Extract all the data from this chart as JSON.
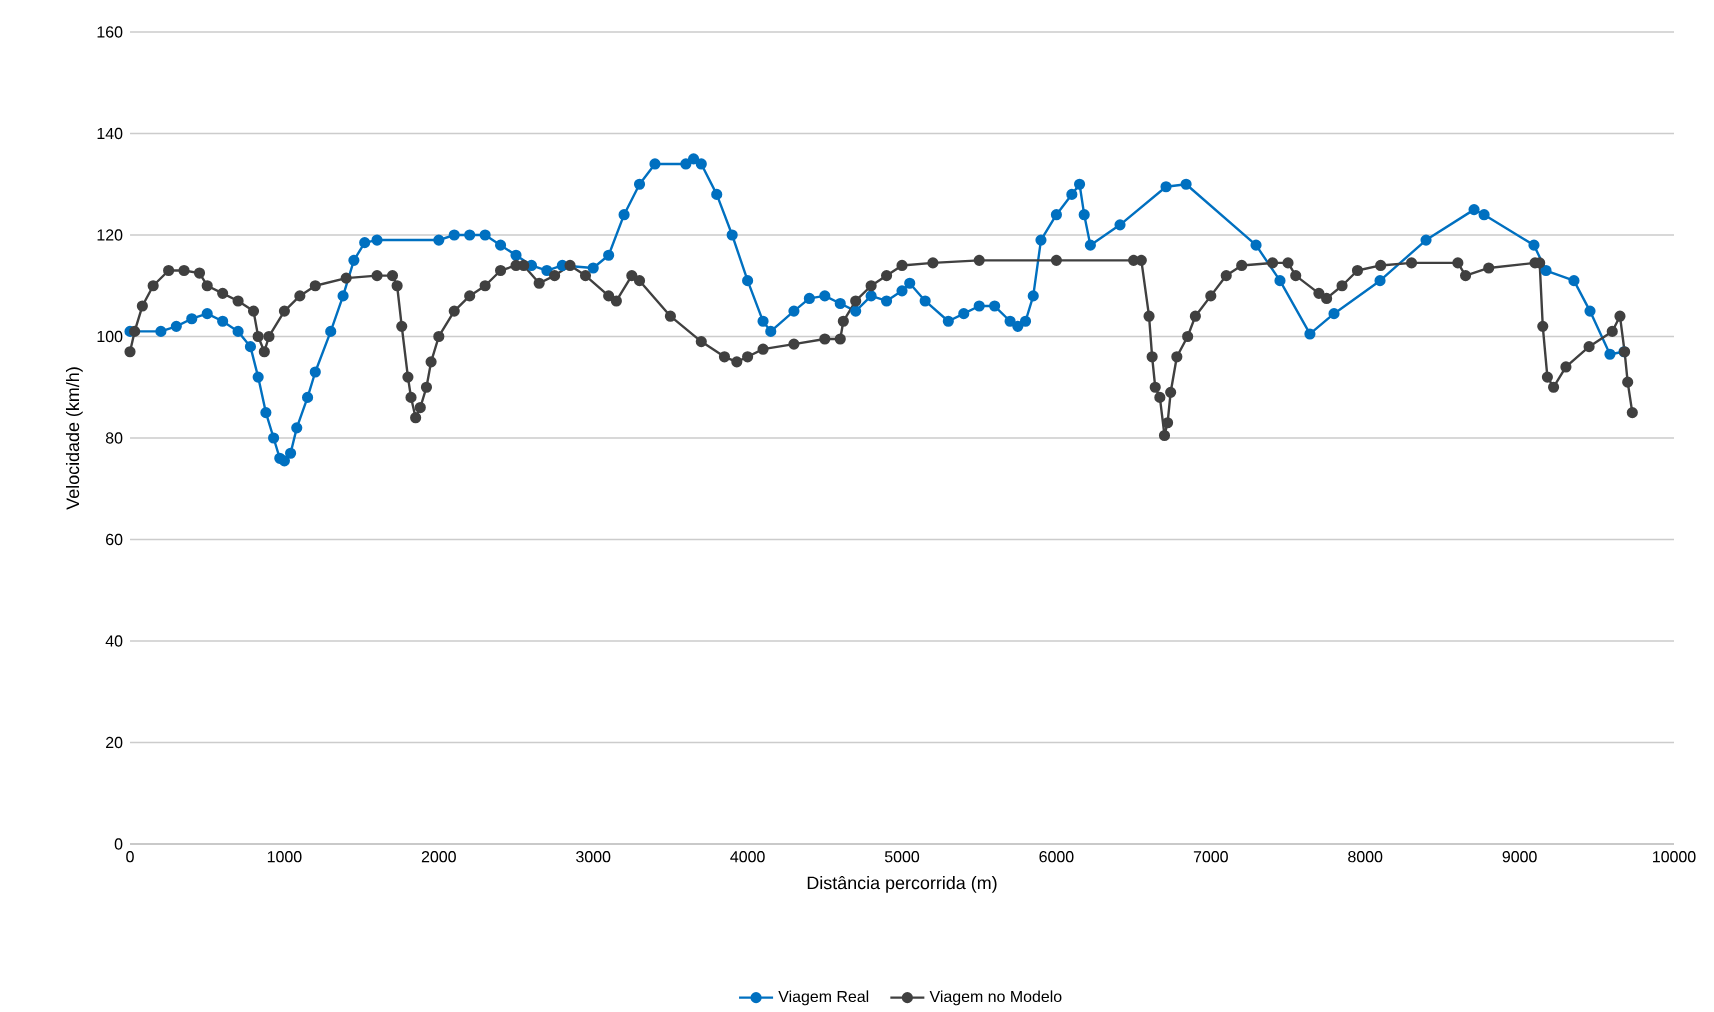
{
  "chart_data": {
    "type": "line",
    "xlabel": "Distância percorrida (m)",
    "ylabel": "Velocidade (km/h)",
    "xlim": [
      0,
      10000
    ],
    "xticks": [
      0,
      1000,
      2000,
      3000,
      4000,
      5000,
      6000,
      7000,
      8000,
      9000,
      10000
    ],
    "ylim": [
      0,
      160
    ],
    "yticks": [
      0,
      20,
      40,
      60,
      80,
      100,
      120,
      140,
      160
    ],
    "grid": "y",
    "legend": "bottom",
    "marker": "circle",
    "series": [
      {
        "name": "Viagem Real",
        "color": "#0070c0",
        "x": [
          0,
          200,
          300,
          400,
          500,
          600,
          700,
          780,
          830,
          880,
          930,
          970,
          1000,
          1040,
          1080,
          1150,
          1200,
          1300,
          1380,
          1450,
          1520,
          1600,
          2000,
          2100,
          2200,
          2300,
          2400,
          2500,
          2600,
          2700,
          2800,
          3000,
          3100,
          3200,
          3300,
          3400,
          3600,
          3650,
          3700,
          3800,
          3900,
          4000,
          4100,
          4150,
          4300,
          4400,
          4500,
          4600,
          4700,
          4800,
          4900,
          5000,
          5050,
          5150,
          5300,
          5400,
          5500,
          5600,
          5700,
          5750,
          5800,
          5850,
          5900,
          6000,
          6100,
          6150,
          6180,
          6220,
          6412,
          6710,
          6840,
          7293,
          7448,
          7642,
          7798,
          8096,
          8394,
          8705,
          8770,
          9093,
          9171,
          9352,
          9456,
          9585,
          9676
        ],
        "values": [
          101,
          101,
          102,
          103.5,
          104.5,
          103,
          101,
          98,
          92,
          85,
          80,
          76,
          75.5,
          77,
          82,
          88,
          93,
          101,
          108,
          115,
          118.5,
          119,
          119,
          120,
          120,
          120,
          118,
          116,
          114,
          113,
          114,
          113.5,
          116,
          124,
          130,
          134,
          134,
          135,
          134,
          128,
          120,
          111,
          103,
          101,
          105,
          107.5,
          108,
          106.5,
          105,
          108,
          107,
          109,
          110.5,
          107,
          103,
          104.5,
          106,
          106,
          103,
          102,
          103,
          108,
          119,
          124,
          128,
          130,
          124,
          118,
          122,
          129.5,
          130,
          118,
          111,
          100.5,
          104.5,
          111,
          119,
          125,
          124,
          118,
          113,
          111,
          105,
          96.5,
          97
        ]
      },
      {
        "name": "Viagem no Modelo",
        "color": "#404040",
        "x": [
          0,
          30,
          80,
          150,
          250,
          350,
          450,
          500,
          600,
          700,
          800,
          830,
          870,
          900,
          1000,
          1100,
          1200,
          1400,
          1600,
          1700,
          1730,
          1760,
          1800,
          1820,
          1850,
          1880,
          1920,
          1950,
          2000,
          2100,
          2200,
          2300,
          2400,
          2500,
          2550,
          2650,
          2750,
          2850,
          2950,
          3100,
          3150,
          3250,
          3300,
          3500,
          3700,
          3850,
          3930,
          4000,
          4100,
          4300,
          4500,
          4600,
          4620,
          4700,
          4800,
          4900,
          5000,
          5200,
          5500,
          6000,
          6500,
          6550,
          6600,
          6620,
          6640,
          6670,
          6700,
          6720,
          6740,
          6780,
          6850,
          6900,
          7000,
          7100,
          7200,
          7400,
          7500,
          7550,
          7700,
          7750,
          7850,
          7950,
          8100,
          8300,
          8600,
          8650,
          8800,
          9100,
          9130,
          9150,
          9180,
          9220,
          9300,
          9450,
          9600,
          9650,
          9680,
          9700,
          9730
        ],
        "values": [
          97,
          101,
          106,
          110,
          113,
          113,
          112.5,
          110,
          108.5,
          107,
          105,
          100,
          97,
          100,
          105,
          108,
          110,
          111.5,
          112,
          112,
          110,
          102,
          92,
          88,
          84,
          86,
          90,
          95,
          100,
          105,
          108,
          110,
          113,
          114,
          114,
          110.5,
          112,
          114,
          112,
          108,
          107,
          112,
          111,
          104,
          99,
          96,
          95,
          96,
          97.5,
          98.5,
          99.5,
          99.5,
          103,
          107,
          110,
          112,
          114,
          114.5,
          115,
          115,
          115,
          115,
          104,
          96,
          90,
          88,
          80.5,
          83,
          89,
          96,
          100,
          104,
          108,
          112,
          114,
          114.5,
          114.5,
          112,
          108.5,
          107.5,
          110,
          113,
          114,
          114.5,
          114.5,
          112,
          113.5,
          114.5,
          114.5,
          102,
          92,
          90,
          94,
          98,
          101,
          104,
          97,
          91,
          85
        ]
      }
    ]
  }
}
